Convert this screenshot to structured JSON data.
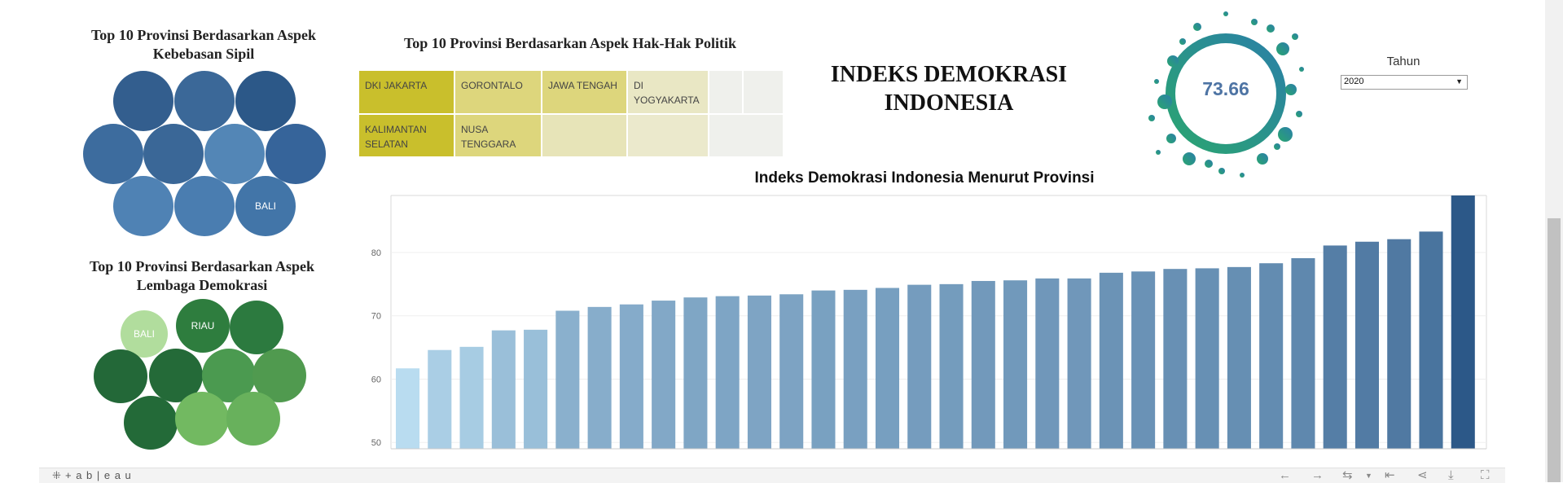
{
  "civil_liberty": {
    "title": "Top 10 Provinsi Berdasarkan Aspek Kebebasan Sipil",
    "bubbles": [
      {
        "label": "",
        "color": "#335e8e"
      },
      {
        "label": "",
        "color": "#3b6898"
      },
      {
        "label": "",
        "color": "#2c5888"
      },
      {
        "label": "",
        "color": "#3d6c9e"
      },
      {
        "label": "",
        "color": "#3a6797"
      },
      {
        "label": "",
        "color": "#5386b6"
      },
      {
        "label": "",
        "color": "#36649a"
      },
      {
        "label": "",
        "color": "#4f82b4"
      },
      {
        "label": "",
        "color": "#4a7db0"
      },
      {
        "label": "BALI",
        "color": "#4275a8"
      }
    ]
  },
  "democracy_institution": {
    "title": "Top 10 Provinsi Berdasarkan Aspek Lembaga Demokrasi",
    "bubbles": [
      {
        "label": "BALI",
        "color": "#b1dd9d"
      },
      {
        "label": "RIAU",
        "color": "#2e7d3e"
      },
      {
        "label": "",
        "color": "#2c7a3f"
      },
      {
        "label": "",
        "color": "#236838"
      },
      {
        "label": "",
        "color": "#246a38"
      },
      {
        "label": "",
        "color": "#4b9a50"
      },
      {
        "label": "",
        "color": "#509a4f"
      },
      {
        "label": "",
        "color": "#236a38"
      },
      {
        "label": "",
        "color": "#72b961"
      },
      {
        "label": "",
        "color": "#68b15c"
      }
    ]
  },
  "political_rights": {
    "title": "Top 10 Provinsi Berdasarkan Aspek Hak-Hak Politik",
    "cells": [
      {
        "label": "DKI JAKARTA",
        "color": "#c9bf2c"
      },
      {
        "label": "GORONTALO",
        "color": "#ddd67c"
      },
      {
        "label": "JAWA TENGAH",
        "color": "#ddd67c"
      },
      {
        "label": "DI YOGYAKARTA",
        "color": "#e9e7c4"
      },
      {
        "label": "",
        "color": "#eff0ec"
      },
      {
        "label": "",
        "color": "#eff0ec"
      },
      {
        "label": "KALIMANTAN SELATAN",
        "color": "#c9bf2c"
      },
      {
        "label": "NUSA TENGGARA",
        "color": "#ddd67c"
      },
      {
        "label": "",
        "color": "#e7e4b8"
      },
      {
        "label": "",
        "color": "#ebe9cc"
      }
    ]
  },
  "header": {
    "title": "INDEKS DEMOKRASI INDONESIA"
  },
  "kpi": {
    "value": "73.66",
    "color": "#4e74a4"
  },
  "filter": {
    "label": "Tahun",
    "selected": "2020"
  },
  "chart_data": {
    "type": "bar",
    "title": "Indeks Demokrasi Indonesia Menurut Provinsi",
    "xlabel": "",
    "ylabel": "",
    "ylim": [
      49,
      89
    ],
    "yticks": [
      50,
      60,
      70,
      80
    ],
    "values": [
      61.7,
      64.6,
      65.1,
      67.7,
      67.8,
      70.8,
      71.4,
      71.8,
      72.4,
      72.9,
      73.1,
      73.2,
      73.4,
      74.0,
      74.1,
      74.4,
      74.9,
      75.0,
      75.5,
      75.6,
      75.9,
      75.9,
      76.8,
      77.0,
      77.4,
      77.5,
      77.7,
      78.3,
      79.1,
      81.1,
      81.7,
      82.1,
      83.3,
      89.0
    ],
    "color_start": "#b9dcf0",
    "color_end": "#2c5888",
    "grid": true
  },
  "toolbar": {
    "brand": "+ a b | e a u",
    "icons": [
      "undo-icon",
      "redo-icon",
      "revert-icon",
      "reset-icon",
      "share-icon",
      "download-icon",
      "fullscreen-icon"
    ]
  }
}
